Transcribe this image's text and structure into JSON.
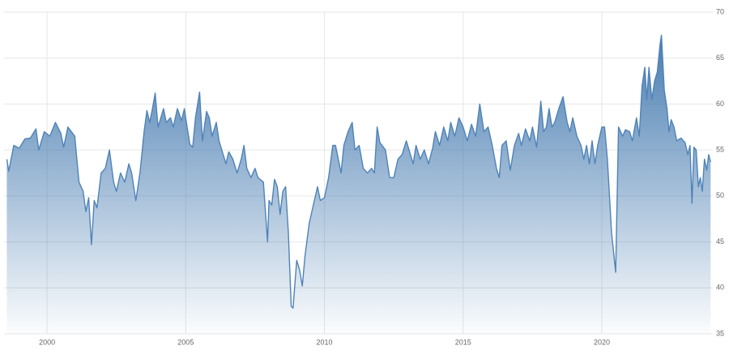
{
  "chart_data": {
    "type": "area",
    "x": [
      1998.55,
      1998.62,
      1998.8,
      1999.0,
      1999.2,
      1999.4,
      1999.6,
      1999.7,
      1999.9,
      2000.1,
      2000.3,
      2000.5,
      2000.6,
      2000.75,
      2001.0,
      2001.15,
      2001.3,
      2001.4,
      2001.5,
      2001.55,
      2001.6,
      2001.7,
      2001.8,
      2001.95,
      2002.1,
      2002.25,
      2002.4,
      2002.5,
      2002.65,
      2002.8,
      2002.95,
      2003.05,
      2003.2,
      2003.35,
      2003.5,
      2003.6,
      2003.7,
      2003.8,
      2003.9,
      2004.0,
      2004.1,
      2004.2,
      2004.3,
      2004.45,
      2004.55,
      2004.7,
      2004.85,
      2004.95,
      2005.05,
      2005.15,
      2005.25,
      2005.35,
      2005.5,
      2005.6,
      2005.75,
      2005.85,
      2005.95,
      2006.1,
      2006.2,
      2006.3,
      2006.45,
      2006.55,
      2006.7,
      2006.85,
      2007.0,
      2007.1,
      2007.2,
      2007.35,
      2007.5,
      2007.6,
      2007.8,
      2007.95,
      2008.0,
      2008.1,
      2008.2,
      2008.3,
      2008.4,
      2008.5,
      2008.6,
      2008.7,
      2008.8,
      2008.87,
      2009.0,
      2009.1,
      2009.2,
      2009.3,
      2009.45,
      2009.6,
      2009.75,
      2009.85,
      2010.0,
      2010.15,
      2010.3,
      2010.4,
      2010.5,
      2010.6,
      2010.7,
      2010.85,
      2011.0,
      2011.1,
      2011.25,
      2011.4,
      2011.55,
      2011.7,
      2011.8,
      2011.9,
      2012.0,
      2012.2,
      2012.35,
      2012.5,
      2012.65,
      2012.8,
      2012.95,
      2013.05,
      2013.2,
      2013.3,
      2013.45,
      2013.6,
      2013.75,
      2013.9,
      2014.0,
      2014.15,
      2014.3,
      2014.45,
      2014.55,
      2014.7,
      2014.85,
      2015.0,
      2015.15,
      2015.3,
      2015.45,
      2015.6,
      2015.75,
      2015.9,
      2016.05,
      2016.2,
      2016.3,
      2016.4,
      2016.55,
      2016.7,
      2016.85,
      2017.0,
      2017.1,
      2017.25,
      2017.4,
      2017.5,
      2017.65,
      2017.8,
      2017.9,
      2018.0,
      2018.1,
      2018.2,
      2018.3,
      2018.45,
      2018.6,
      2018.75,
      2018.85,
      2018.95,
      2019.1,
      2019.25,
      2019.35,
      2019.45,
      2019.55,
      2019.65,
      2019.75,
      2019.85,
      2020.0,
      2020.1,
      2020.2,
      2020.35,
      2020.5,
      2020.6,
      2020.75,
      2020.85,
      2021.0,
      2021.1,
      2021.25,
      2021.35,
      2021.45,
      2021.55,
      2021.62,
      2021.7,
      2021.8,
      2021.9,
      2022.0,
      2022.1,
      2022.15,
      2022.25,
      2022.35,
      2022.42,
      2022.5,
      2022.6,
      2022.7,
      2022.85,
      2023.0,
      2023.1,
      2023.18,
      2023.25,
      2023.32,
      2023.4,
      2023.48,
      2023.55,
      2023.62,
      2023.7,
      2023.78,
      2023.85,
      2023.92
    ],
    "values": [
      54,
      52.7,
      55.5,
      55.2,
      56.2,
      56.3,
      57.3,
      55.0,
      57.0,
      56.5,
      58.0,
      56.8,
      55.3,
      57.5,
      56.5,
      51.5,
      50.5,
      48.3,
      49.8,
      47.2,
      44.7,
      49.5,
      48.7,
      52.5,
      53.0,
      55.0,
      51.5,
      50.5,
      52.5,
      51.5,
      53.5,
      52.5,
      49.5,
      52.5,
      57.0,
      59.3,
      58.0,
      59.5,
      61.2,
      57.5,
      58.5,
      59.5,
      58.0,
      58.5,
      57.5,
      59.5,
      58.2,
      59.5,
      57.5,
      55.6,
      55.3,
      58.5,
      61.3,
      56.0,
      59.2,
      58.5,
      56.5,
      58.0,
      56.0,
      55.0,
      53.5,
      54.8,
      54.0,
      52.5,
      54.0,
      55.5,
      53.0,
      52.0,
      53.0,
      52.0,
      51.5,
      45.0,
      49.5,
      49.0,
      51.8,
      51.0,
      48.0,
      50.5,
      51.0,
      46.0,
      38.0,
      37.8,
      43.0,
      42.0,
      40.2,
      43.5,
      47.0,
      49.0,
      51.0,
      49.5,
      49.8,
      52.0,
      55.5,
      55.5,
      54.0,
      52.5,
      55.5,
      57.0,
      58.0,
      55.0,
      55.5,
      53.0,
      52.5,
      53.0,
      52.5,
      57.5,
      55.8,
      55.0,
      52.0,
      52.0,
      54.0,
      54.5,
      56.0,
      55.0,
      53.5,
      55.5,
      54.0,
      55.0,
      53.5,
      55.2,
      57.0,
      55.5,
      57.5,
      56.0,
      58.0,
      56.5,
      58.5,
      57.5,
      56.0,
      57.8,
      56.5,
      60.0,
      57.0,
      57.5,
      55.5,
      53.0,
      52.0,
      55.5,
      56.0,
      52.8,
      55.5,
      56.8,
      55.5,
      57.3,
      56.0,
      57.5,
      55.3,
      60.3,
      57.0,
      57.5,
      59.5,
      57.5,
      58.0,
      59.5,
      60.8,
      58.0,
      57.0,
      58.5,
      56.5,
      55.5,
      54.0,
      55.5,
      53.5,
      56.0,
      53.5,
      55.5,
      57.5,
      57.5,
      54.0,
      46.0,
      41.7,
      57.5,
      56.5,
      57.2,
      57.0,
      56.0,
      58.5,
      56.5,
      62.0,
      64.0,
      60.5,
      64.0,
      60.5,
      62.5,
      63.5,
      66.5,
      67.5,
      61.5,
      59.5,
      57.0,
      58.3,
      57.5,
      56.0,
      56.3,
      55.8,
      54.5,
      55.5,
      49.2,
      55.3,
      55.0,
      51.0,
      52.0,
      50.5,
      54.0,
      52.8,
      54.5,
      53.7
    ],
    "color": "#4f83b8",
    "xlim": [
      1998.45,
      2024.0
    ],
    "xticks": [
      2000,
      2005,
      2010,
      2015,
      2020
    ],
    "ylim": [
      35,
      70
    ],
    "yticks": [
      35,
      40,
      45,
      50,
      55,
      60,
      65,
      70
    ],
    "grid": true
  }
}
